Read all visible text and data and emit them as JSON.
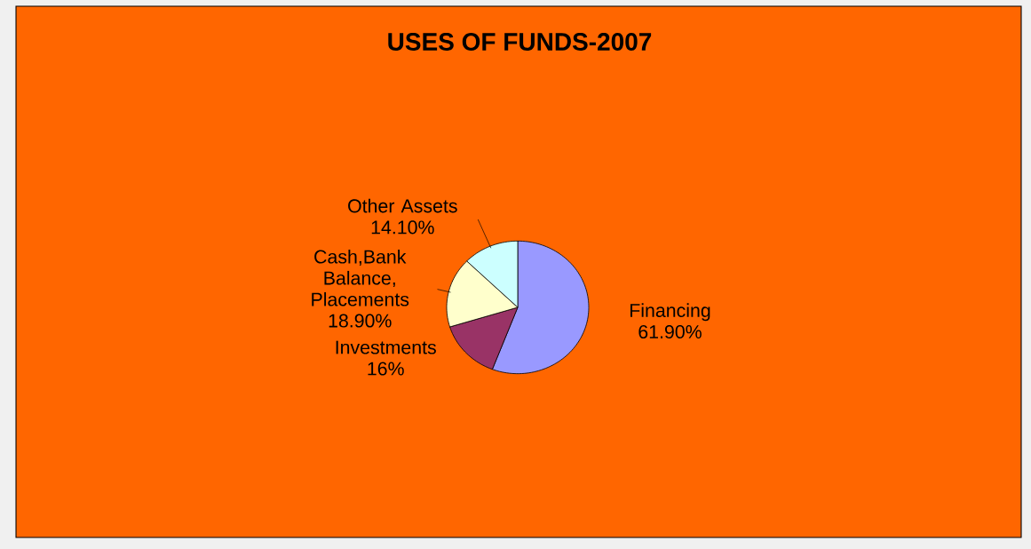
{
  "chart_data": {
    "type": "pie",
    "title": "USES OF FUNDS-2007",
    "categories": [
      "Financing",
      "Investments",
      "Cash,Bank Balance, Placements",
      "Other Assets"
    ],
    "values": [
      61.9,
      16,
      18.9,
      14.1
    ],
    "value_labels": [
      "61.90%",
      "16%",
      "18.90%",
      "14.10%"
    ],
    "colors": [
      "#9999ff",
      "#993366",
      "#ffffcc",
      "#ccffff"
    ]
  }
}
